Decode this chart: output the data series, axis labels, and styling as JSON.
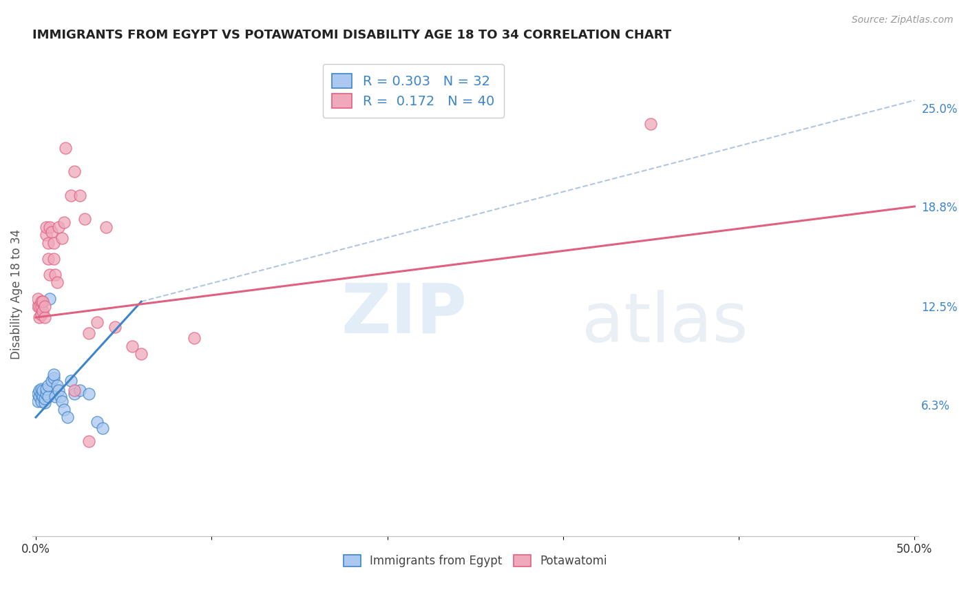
{
  "title": "IMMIGRANTS FROM EGYPT VS POTAWATOMI DISABILITY AGE 18 TO 34 CORRELATION CHART",
  "source": "Source: ZipAtlas.com",
  "ylabel": "Disability Age 18 to 34",
  "xlim": [
    -0.002,
    0.502
  ],
  "ylim": [
    -0.02,
    0.285
  ],
  "xtick_positions": [
    0.0,
    0.1,
    0.2,
    0.3,
    0.4,
    0.5
  ],
  "xtick_labels": [
    "0.0%",
    "",
    "",
    "",
    "",
    "50.0%"
  ],
  "ytick_vals_right": [
    0.063,
    0.125,
    0.188,
    0.25
  ],
  "ytick_labels_right": [
    "6.3%",
    "12.5%",
    "18.8%",
    "25.0%"
  ],
  "blue_color": "#3d85c8",
  "pink_color": "#e06080",
  "scatter_blue_face": "#aac8f0",
  "scatter_pink_face": "#f0a8bc",
  "dashed_color": "#a0b8d8",
  "watermark_zip": "ZIP",
  "watermark_atlas": "atlas",
  "blue_R": "0.303",
  "blue_N": "32",
  "pink_R": "0.172",
  "pink_N": "40",
  "legend_label1": "R = 0.303   N = 32",
  "legend_label2": "R =  0.172   N = 40",
  "bottom_legend1": "Immigrants from Egypt",
  "bottom_legend2": "Potawatomi",
  "blue_line_x": [
    0.0,
    0.06
  ],
  "blue_line_y": [
    0.055,
    0.128
  ],
  "pink_line_x": [
    0.0,
    0.5
  ],
  "pink_line_y": [
    0.118,
    0.188
  ],
  "dash_line_x": [
    0.06,
    0.5
  ],
  "dash_line_y": [
    0.128,
    0.255
  ],
  "blue_scatter_x": [
    0.001,
    0.001,
    0.002,
    0.002,
    0.003,
    0.003,
    0.003,
    0.004,
    0.004,
    0.005,
    0.005,
    0.006,
    0.006,
    0.007,
    0.007,
    0.008,
    0.009,
    0.01,
    0.01,
    0.011,
    0.012,
    0.013,
    0.014,
    0.015,
    0.016,
    0.018,
    0.02,
    0.022,
    0.025,
    0.03,
    0.035,
    0.038
  ],
  "blue_scatter_y": [
    0.065,
    0.07,
    0.068,
    0.072,
    0.065,
    0.07,
    0.073,
    0.068,
    0.072,
    0.064,
    0.067,
    0.07,
    0.073,
    0.068,
    0.075,
    0.13,
    0.078,
    0.08,
    0.082,
    0.068,
    0.075,
    0.072,
    0.068,
    0.065,
    0.06,
    0.055,
    0.078,
    0.07,
    0.072,
    0.07,
    0.052,
    0.048
  ],
  "pink_scatter_x": [
    0.001,
    0.001,
    0.002,
    0.002,
    0.003,
    0.003,
    0.003,
    0.004,
    0.004,
    0.005,
    0.005,
    0.006,
    0.006,
    0.007,
    0.007,
    0.008,
    0.008,
    0.009,
    0.01,
    0.01,
    0.011,
    0.012,
    0.013,
    0.015,
    0.016,
    0.017,
    0.02,
    0.022,
    0.025,
    0.028,
    0.03,
    0.035,
    0.04,
    0.045,
    0.055,
    0.06,
    0.09,
    0.35,
    0.022,
    0.03
  ],
  "pink_scatter_y": [
    0.125,
    0.13,
    0.118,
    0.125,
    0.12,
    0.125,
    0.128,
    0.122,
    0.128,
    0.118,
    0.125,
    0.17,
    0.175,
    0.165,
    0.155,
    0.175,
    0.145,
    0.172,
    0.165,
    0.155,
    0.145,
    0.14,
    0.175,
    0.168,
    0.178,
    0.225,
    0.195,
    0.21,
    0.195,
    0.18,
    0.108,
    0.115,
    0.175,
    0.112,
    0.1,
    0.095,
    0.105,
    0.24,
    0.072,
    0.04
  ],
  "grid_color": "#cccccc",
  "background_color": "#ffffff"
}
